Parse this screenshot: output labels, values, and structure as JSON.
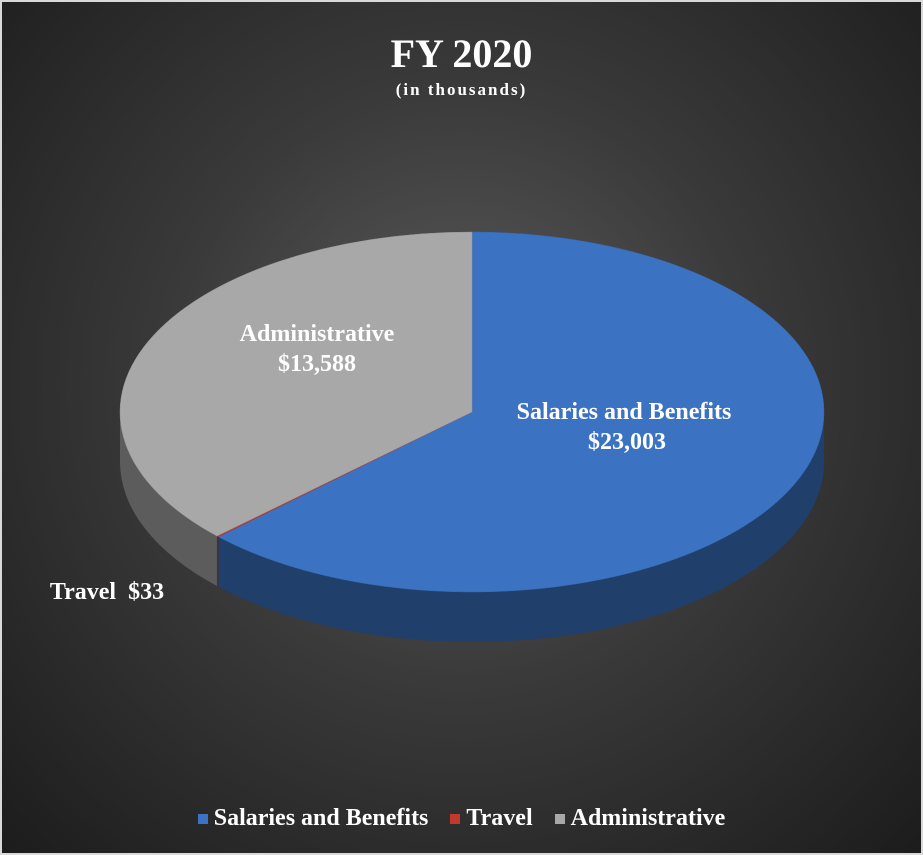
{
  "chart_data": {
    "type": "pie",
    "title": "FY 2020",
    "subtitle": "(in thousands)",
    "categories": [
      "Salaries and Benefits",
      "Travel",
      "Administrative"
    ],
    "values": [
      23003,
      33,
      13588
    ],
    "value_labels": [
      "$23,003",
      "$33",
      "$13,588"
    ],
    "colors": [
      "#3b73c2",
      "#c0392b",
      "#a8a8a8"
    ],
    "legend": "bottom"
  }
}
